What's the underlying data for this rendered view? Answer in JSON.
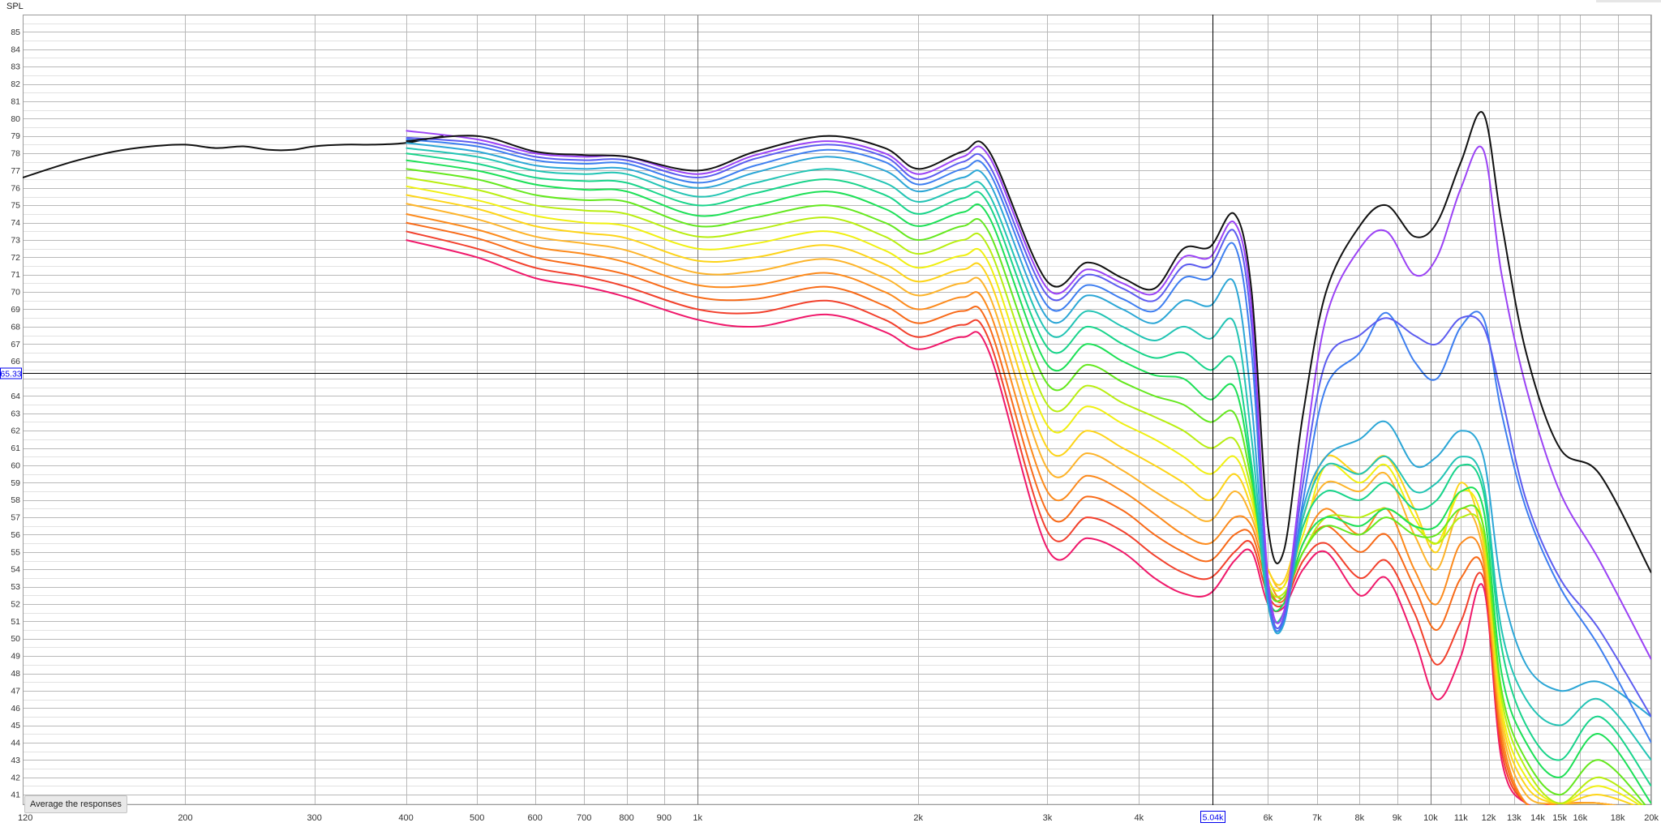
{
  "ylabel": "SPL",
  "button": {
    "average_label": "Average the responses"
  },
  "cursor": {
    "x_value": 5040,
    "x_label": "5.04k",
    "y_value": 65.33,
    "y_label": "65.33"
  },
  "colors": {
    "background": "#ffffff",
    "grid_major": "#b9b9b9",
    "grid_minor": "#e2e2e2",
    "cursor": "#000000",
    "cursor_label": "#0000ee"
  },
  "chart_data": {
    "type": "line",
    "title": "",
    "xlabel": "",
    "ylabel": "SPL",
    "xscale": "log",
    "xlim": [
      120,
      20000
    ],
    "ylim": [
      40.4,
      86
    ],
    "grid": true,
    "x_ticks": [
      {
        "v": 120,
        "l": "120"
      },
      {
        "v": 200,
        "l": "200"
      },
      {
        "v": 300,
        "l": "300"
      },
      {
        "v": 400,
        "l": "400"
      },
      {
        "v": 500,
        "l": "500"
      },
      {
        "v": 600,
        "l": "600"
      },
      {
        "v": 700,
        "l": "700"
      },
      {
        "v": 800,
        "l": "800"
      },
      {
        "v": 900,
        "l": "900"
      },
      {
        "v": 1000,
        "l": "1k"
      },
      {
        "v": 2000,
        "l": "2k"
      },
      {
        "v": 3000,
        "l": "3k"
      },
      {
        "v": 4000,
        "l": "4k"
      },
      {
        "v": 6000,
        "l": "6k"
      },
      {
        "v": 7000,
        "l": "7k"
      },
      {
        "v": 8000,
        "l": "8k"
      },
      {
        "v": 9000,
        "l": "9k"
      },
      {
        "v": 10000,
        "l": "10k"
      },
      {
        "v": 11000,
        "l": "11k"
      },
      {
        "v": 12000,
        "l": "12k"
      },
      {
        "v": 13000,
        "l": "13k"
      },
      {
        "v": 14000,
        "l": "14k"
      },
      {
        "v": 15000,
        "l": "15k"
      },
      {
        "v": 16000,
        "l": "16k"
      },
      {
        "v": 18000,
        "l": "18k"
      },
      {
        "v": 20000,
        "l": "20k"
      }
    ],
    "y_ticks": [
      41,
      42,
      43,
      44,
      45,
      46,
      47,
      48,
      49,
      50,
      51,
      52,
      53,
      54,
      55,
      56,
      57,
      58,
      59,
      60,
      61,
      62,
      63,
      64,
      66,
      67,
      68,
      69,
      70,
      71,
      72,
      73,
      74,
      75,
      76,
      77,
      78,
      79,
      80,
      81,
      82,
      83,
      84,
      85
    ],
    "x": [
      400,
      500,
      600,
      700,
      800,
      1000,
      1200,
      1500,
      1800,
      2000,
      2300,
      2500,
      3000,
      3400,
      3800,
      4200,
      4600,
      5000,
      5400,
      5700,
      6000,
      6300,
      6700,
      7200,
      8000,
      8700,
      9500,
      10200,
      11000,
      11800,
      12500,
      13500,
      15000,
      17000,
      20000
    ],
    "reference": {
      "x": [
        120,
        140,
        160,
        180,
        200,
        220,
        240,
        260,
        280,
        300,
        330,
        360,
        400,
        450
      ],
      "y": [
        76.6,
        77.5,
        78.1,
        78.4,
        78.5,
        78.3,
        78.4,
        78.2,
        78.2,
        78.4,
        78.5,
        78.5,
        78.6,
        79.0
      ]
    },
    "series": [
      {
        "color": "#111111",
        "y": [
          78.7,
          79.0,
          78.1,
          77.9,
          77.8,
          77.0,
          78.1,
          79.0,
          78.3,
          77.1,
          78.1,
          78.1,
          70.6,
          71.7,
          70.8,
          70.2,
          72.5,
          72.6,
          74.5,
          70.0,
          56.5,
          55.0,
          63.0,
          70.0,
          73.8,
          75.0,
          73.2,
          74.0,
          77.5,
          80.3,
          74.0,
          66.5,
          61.0,
          59.5,
          53.8
        ]
      },
      {
        "color": "#9b42f5",
        "y": [
          79.3,
          78.8,
          78.0,
          77.8,
          77.8,
          76.8,
          77.9,
          78.7,
          78.0,
          76.8,
          77.8,
          77.8,
          70.2,
          71.3,
          70.5,
          69.9,
          72.0,
          72.0,
          74.0,
          69.0,
          53.5,
          51.5,
          60.0,
          68.5,
          72.5,
          73.5,
          71.0,
          72.0,
          76.0,
          78.2,
          71.0,
          64.5,
          58.5,
          54.5,
          48.8
        ]
      },
      {
        "color": "#5c5cf0",
        "y": [
          78.9,
          78.6,
          77.8,
          77.6,
          77.6,
          76.6,
          77.7,
          78.5,
          77.8,
          76.5,
          77.5,
          77.3,
          69.8,
          71.0,
          70.2,
          69.5,
          71.5,
          71.5,
          73.5,
          68.0,
          53.0,
          51.2,
          59.0,
          66.0,
          67.5,
          68.5,
          67.5,
          67.0,
          68.5,
          68.0,
          64.0,
          58.0,
          53.5,
          50.5,
          45.5
        ]
      },
      {
        "color": "#3d7ef0",
        "y": [
          78.8,
          78.4,
          77.6,
          77.4,
          77.4,
          76.3,
          77.3,
          78.2,
          77.5,
          76.2,
          77.1,
          76.9,
          69.2,
          70.4,
          69.6,
          68.9,
          70.8,
          70.8,
          72.7,
          66.5,
          52.6,
          51.0,
          58.0,
          64.5,
          66.5,
          68.8,
          66.0,
          65.0,
          68.0,
          68.5,
          63.0,
          57.5,
          53.0,
          49.5,
          44.0
        ]
      },
      {
        "color": "#2ba6d6",
        "y": [
          78.6,
          78.1,
          77.3,
          77.1,
          77.1,
          76.0,
          76.9,
          77.8,
          77.0,
          75.8,
          76.6,
          76.3,
          68.5,
          69.8,
          69.0,
          68.2,
          69.5,
          69.2,
          70.5,
          63.5,
          52.2,
          50.8,
          57.5,
          60.5,
          61.5,
          62.5,
          60.0,
          60.5,
          62.0,
          60.5,
          53.0,
          48.5,
          47.0,
          47.5,
          45.5
        ]
      },
      {
        "color": "#22c4b4",
        "y": [
          78.3,
          77.8,
          77.0,
          76.8,
          76.8,
          75.5,
          76.3,
          77.1,
          76.3,
          75.2,
          76.0,
          75.6,
          67.7,
          68.9,
          68.0,
          67.2,
          68.0,
          67.3,
          68.2,
          61.5,
          52.0,
          50.9,
          57.0,
          60.0,
          59.5,
          60.5,
          58.5,
          59.0,
          60.5,
          59.0,
          50.5,
          46.5,
          45.0,
          46.5,
          43.0
        ]
      },
      {
        "color": "#18d48a",
        "y": [
          78.0,
          77.4,
          76.6,
          76.4,
          76.3,
          75.0,
          75.7,
          76.5,
          75.6,
          74.5,
          75.4,
          75.0,
          66.8,
          68.0,
          67.0,
          66.2,
          66.5,
          65.5,
          66.0,
          60.0,
          52.0,
          51.5,
          56.5,
          58.5,
          58.0,
          59.0,
          57.5,
          58.0,
          60.0,
          58.5,
          49.5,
          45.0,
          43.0,
          45.5,
          41.5
        ]
      },
      {
        "color": "#1ce056",
        "y": [
          77.6,
          77.0,
          76.2,
          75.9,
          75.8,
          74.4,
          75.0,
          75.8,
          74.8,
          73.8,
          74.6,
          74.3,
          65.8,
          67.0,
          66.0,
          65.2,
          65.0,
          63.8,
          64.5,
          59.5,
          52.5,
          52.0,
          55.5,
          57.0,
          56.5,
          57.5,
          56.5,
          56.5,
          58.5,
          57.5,
          48.0,
          44.0,
          42.0,
          44.5,
          40.5
        ]
      },
      {
        "color": "#64e81e",
        "y": [
          77.1,
          76.5,
          75.6,
          75.3,
          75.2,
          73.8,
          74.3,
          75.0,
          74.0,
          73.0,
          73.8,
          73.4,
          64.7,
          65.8,
          64.8,
          64.0,
          63.5,
          62.5,
          63.0,
          59.0,
          53.0,
          52.4,
          55.0,
          56.5,
          56.0,
          57.0,
          56.0,
          56.0,
          57.5,
          56.5,
          47.0,
          43.0,
          41.0,
          43.0,
          40.0
        ]
      },
      {
        "color": "#b8ee10",
        "y": [
          76.6,
          75.9,
          75.0,
          74.7,
          74.5,
          73.2,
          73.6,
          74.3,
          73.2,
          72.2,
          73.0,
          72.5,
          63.5,
          64.6,
          63.6,
          62.8,
          62.0,
          61.0,
          61.5,
          58.5,
          53.2,
          52.6,
          55.0,
          57.0,
          57.0,
          57.5,
          56.5,
          55.5,
          57.0,
          56.0,
          46.5,
          42.5,
          40.5,
          42.0,
          40.0
        ]
      },
      {
        "color": "#f0f010",
        "y": [
          76.1,
          75.3,
          74.4,
          74.0,
          73.8,
          72.5,
          72.8,
          73.5,
          72.4,
          71.4,
          72.1,
          71.6,
          62.3,
          63.4,
          62.4,
          61.5,
          60.5,
          59.5,
          60.5,
          58.0,
          53.5,
          53.0,
          56.0,
          60.0,
          59.0,
          60.0,
          57.0,
          55.5,
          58.5,
          56.5,
          46.0,
          42.0,
          40.5,
          41.5,
          40.0
        ]
      },
      {
        "color": "#fdd418",
        "y": [
          75.6,
          74.8,
          73.8,
          73.4,
          73.1,
          71.8,
          72.0,
          72.7,
          71.6,
          70.6,
          71.3,
          70.7,
          61.0,
          62.0,
          61.0,
          60.0,
          59.0,
          58.0,
          59.5,
          57.5,
          54.0,
          53.3,
          57.0,
          60.5,
          59.5,
          60.5,
          57.5,
          55.0,
          59.0,
          55.5,
          45.5,
          41.5,
          40.5,
          41.0,
          40.0
        ]
      },
      {
        "color": "#fdb42a",
        "y": [
          75.1,
          74.2,
          73.2,
          72.8,
          72.4,
          71.1,
          71.2,
          71.9,
          70.8,
          69.8,
          70.5,
          69.8,
          59.8,
          60.7,
          59.7,
          58.5,
          57.5,
          56.8,
          58.5,
          57.0,
          54.0,
          53.0,
          56.5,
          59.0,
          58.5,
          59.5,
          56.0,
          54.0,
          57.5,
          55.0,
          45.0,
          41.0,
          40.5,
          40.5,
          40.0
        ]
      },
      {
        "color": "#fc8a1c",
        "y": [
          74.5,
          73.6,
          72.6,
          72.2,
          71.7,
          70.4,
          70.4,
          71.1,
          70.0,
          69.0,
          69.7,
          68.9,
          58.5,
          59.4,
          58.5,
          57.2,
          56.0,
          55.5,
          57.0,
          56.5,
          53.5,
          52.4,
          55.5,
          57.5,
          56.0,
          57.5,
          54.0,
          52.0,
          55.5,
          54.5,
          44.5,
          40.5,
          40.5,
          40.5,
          40.0
        ]
      },
      {
        "color": "#f86a18",
        "y": [
          74.0,
          73.1,
          72.0,
          71.5,
          71.0,
          69.7,
          69.6,
          70.3,
          69.2,
          68.2,
          68.9,
          68.0,
          57.3,
          58.2,
          57.4,
          56.0,
          55.0,
          54.5,
          56.0,
          56.0,
          53.0,
          52.2,
          55.0,
          56.5,
          55.0,
          56.0,
          53.0,
          50.5,
          53.5,
          54.0,
          44.0,
          40.5,
          40.5,
          40.5,
          40.0
        ]
      },
      {
        "color": "#f2402c",
        "y": [
          73.5,
          72.5,
          71.4,
          70.9,
          70.3,
          69.0,
          68.8,
          69.5,
          68.4,
          67.4,
          68.1,
          67.2,
          56.2,
          57.0,
          56.2,
          54.8,
          53.8,
          53.5,
          55.0,
          55.5,
          52.5,
          52.0,
          54.5,
          55.5,
          53.5,
          54.5,
          51.5,
          48.5,
          51.0,
          53.5,
          43.5,
          40.5,
          40.5,
          40.5,
          40.0
        ]
      },
      {
        "color": "#f0186a",
        "y": [
          73.0,
          72.0,
          70.8,
          70.3,
          69.7,
          68.4,
          68.0,
          68.7,
          67.7,
          66.7,
          67.4,
          66.5,
          55.2,
          55.8,
          55.0,
          53.5,
          52.6,
          52.6,
          54.5,
          55.0,
          52.0,
          51.8,
          54.0,
          55.0,
          52.5,
          53.5,
          50.0,
          46.5,
          49.0,
          53.0,
          43.0,
          40.5,
          40.5,
          40.5,
          40.0
        ]
      }
    ]
  }
}
